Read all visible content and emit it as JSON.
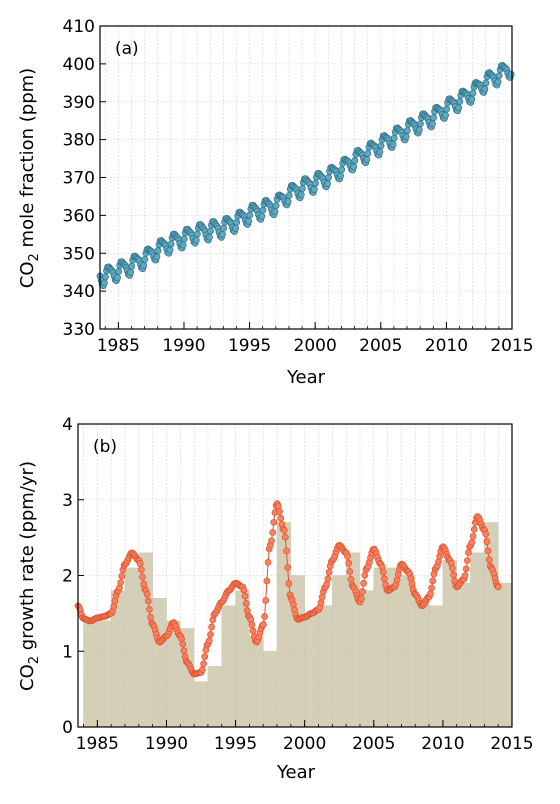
{
  "chart_data": [
    {
      "type": "scatter",
      "panel_label": "(a)",
      "xlabel": "Year",
      "ylabel_main": "CO",
      "ylabel_sub": "2",
      "ylabel_rest": " mole fraction (ppm)",
      "xlim": [
        1983.6,
        2015
      ],
      "ylim": [
        330,
        410
      ],
      "xticks": [
        1985,
        1990,
        1995,
        2000,
        2005,
        2010,
        2015
      ],
      "yticks": [
        330,
        340,
        350,
        360,
        370,
        380,
        390,
        400,
        410
      ],
      "grid": true,
      "marker_color": "#5fa8c0",
      "line_color": "#2f6f88",
      "series": [
        {
          "x_start": 1983.6,
          "x_end": 2014.9,
          "points_per_year": 12,
          "yearly_mean": [
            [
              1984,
              344.1
            ],
            [
              1985,
              345.5
            ],
            [
              1986,
              346.9
            ],
            [
              1987,
              348.7
            ],
            [
              1988,
              351.0
            ],
            [
              1989,
              352.8
            ],
            [
              1990,
              354.1
            ],
            [
              1991,
              355.4
            ],
            [
              1992,
              356.2
            ],
            [
              1993,
              356.9
            ],
            [
              1994,
              358.5
            ],
            [
              1995,
              360.4
            ],
            [
              1996,
              361.7
            ],
            [
              1997,
              362.9
            ],
            [
              1998,
              365.6
            ],
            [
              1999,
              367.4
            ],
            [
              2000,
              368.8
            ],
            [
              2001,
              370.3
            ],
            [
              2002,
              372.4
            ],
            [
              2003,
              374.8
            ],
            [
              2004,
              376.7
            ],
            [
              2005,
              378.7
            ],
            [
              2006,
              380.7
            ],
            [
              2007,
              382.7
            ],
            [
              2008,
              384.5
            ],
            [
              2009,
              386.1
            ],
            [
              2010,
              388.4
            ],
            [
              2011,
              390.4
            ],
            [
              2012,
              392.6
            ],
            [
              2013,
              395.3
            ],
            [
              2014,
              397.2
            ],
            [
              2015,
              399.2
            ]
          ],
          "seasonal_amplitude": 2.2
        }
      ]
    },
    {
      "type": "bar",
      "panel_label": "(b)",
      "xlabel": "Year",
      "ylabel_main": "CO",
      "ylabel_sub": "2",
      "ylabel_rest": " growth rate (ppm/yr)",
      "xlim": [
        1983.6,
        2015
      ],
      "ylim": [
        0,
        4
      ],
      "xticks": [
        1985,
        1990,
        1995,
        2000,
        2005,
        2010,
        2015
      ],
      "yticks": [
        0,
        1,
        2,
        3,
        4
      ],
      "grid": true,
      "bar_color": "#d6cfb8",
      "marker_color": "#ff7f5e",
      "marker_edge": "#d9532e",
      "categories": [
        1984,
        1985,
        1986,
        1987,
        1988,
        1989,
        1990,
        1991,
        1992,
        1993,
        1994,
        1995,
        1996,
        1997,
        1998,
        1999,
        2000,
        2001,
        2002,
        2003,
        2004,
        2005,
        2006,
        2007,
        2008,
        2009,
        2010,
        2011,
        2012,
        2013,
        2014
      ],
      "values": [
        1.4,
        1.4,
        1.8,
        2.1,
        2.3,
        1.7,
        1.4,
        1.3,
        0.6,
        0.8,
        1.6,
        1.8,
        1.2,
        1.0,
        2.7,
        2.0,
        1.5,
        1.6,
        2.0,
        2.3,
        1.8,
        2.1,
        2.1,
        2.0,
        1.7,
        1.6,
        2.2,
        1.9,
        2.3,
        2.7,
        1.9
      ],
      "series": [
        {
          "name": "",
          "points_per_year": 12,
          "x_start": 1983.6,
          "x_end": 2014.0,
          "curve": [
            [
              1983.6,
              1.6
            ],
            [
              1984.0,
              1.43
            ],
            [
              1984.5,
              1.4
            ],
            [
              1985.0,
              1.44
            ],
            [
              1985.5,
              1.46
            ],
            [
              1986.0,
              1.5
            ],
            [
              1986.5,
              1.8
            ],
            [
              1987.0,
              2.15
            ],
            [
              1987.5,
              2.3
            ],
            [
              1988.0,
              2.2
            ],
            [
              1988.5,
              1.8
            ],
            [
              1989.0,
              1.35
            ],
            [
              1989.5,
              1.12
            ],
            [
              1990.0,
              1.2
            ],
            [
              1990.5,
              1.38
            ],
            [
              1991.0,
              1.2
            ],
            [
              1991.5,
              0.85
            ],
            [
              1992.0,
              0.7
            ],
            [
              1992.5,
              0.72
            ],
            [
              1993.0,
              1.1
            ],
            [
              1993.5,
              1.5
            ],
            [
              1994.0,
              1.65
            ],
            [
              1994.5,
              1.8
            ],
            [
              1995.0,
              1.9
            ],
            [
              1995.5,
              1.85
            ],
            [
              1996.0,
              1.45
            ],
            [
              1996.5,
              1.12
            ],
            [
              1997.0,
              1.35
            ],
            [
              1997.5,
              2.4
            ],
            [
              1998.0,
              2.95
            ],
            [
              1998.5,
              2.6
            ],
            [
              1999.0,
              1.7
            ],
            [
              1999.5,
              1.42
            ],
            [
              2000.0,
              1.45
            ],
            [
              2000.5,
              1.5
            ],
            [
              2001.0,
              1.55
            ],
            [
              2001.5,
              1.85
            ],
            [
              2002.0,
              2.2
            ],
            [
              2002.5,
              2.4
            ],
            [
              2003.0,
              2.3
            ],
            [
              2003.5,
              1.85
            ],
            [
              2004.0,
              1.65
            ],
            [
              2004.5,
              2.1
            ],
            [
              2005.0,
              2.35
            ],
            [
              2005.5,
              2.15
            ],
            [
              2006.0,
              1.8
            ],
            [
              2006.5,
              1.85
            ],
            [
              2007.0,
              2.15
            ],
            [
              2007.5,
              2.05
            ],
            [
              2008.0,
              1.75
            ],
            [
              2008.5,
              1.6
            ],
            [
              2009.0,
              1.72
            ],
            [
              2009.5,
              2.1
            ],
            [
              2010.0,
              2.38
            ],
            [
              2010.5,
              2.2
            ],
            [
              2011.0,
              1.85
            ],
            [
              2011.5,
              1.95
            ],
            [
              2012.0,
              2.4
            ],
            [
              2012.5,
              2.78
            ],
            [
              2013.0,
              2.6
            ],
            [
              2013.5,
              2.1
            ],
            [
              2014.0,
              1.85
            ]
          ]
        }
      ]
    }
  ]
}
